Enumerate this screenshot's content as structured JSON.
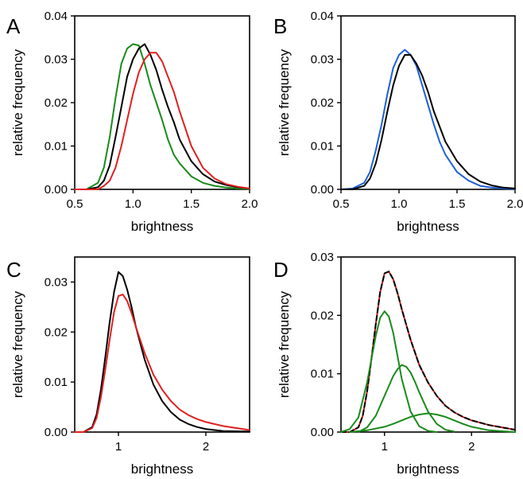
{
  "chart_data": [
    {
      "type": "line",
      "panel": "A",
      "xlabel": "brightness",
      "ylabel": "relative frequency",
      "xlim": [
        0.5,
        2.0
      ],
      "ylim": [
        0,
        0.04
      ],
      "xticks": [
        "0.5",
        "1.0",
        "1.5",
        "2.0"
      ],
      "yticks": [
        "0.00",
        "0.01",
        "0.02",
        "0.03",
        "0.04"
      ],
      "series": [
        {
          "color": "#1a8a1a",
          "x": [
            0.5,
            0.6,
            0.7,
            0.75,
            0.8,
            0.85,
            0.9,
            0.95,
            1.0,
            1.05,
            1.1,
            1.15,
            1.2,
            1.25,
            1.3,
            1.35,
            1.4,
            1.5,
            1.6,
            1.7,
            1.8,
            1.9,
            2.0
          ],
          "y": [
            0,
            0,
            0.0015,
            0.005,
            0.012,
            0.021,
            0.029,
            0.0325,
            0.0335,
            0.0332,
            0.029,
            0.024,
            0.02,
            0.016,
            0.0115,
            0.008,
            0.006,
            0.003,
            0.0015,
            0.0008,
            0.0004,
            0.0002,
            0.0001
          ]
        },
        {
          "color": "#000000",
          "x": [
            0.5,
            0.6,
            0.7,
            0.75,
            0.8,
            0.85,
            0.9,
            0.95,
            1.0,
            1.05,
            1.1,
            1.15,
            1.2,
            1.25,
            1.3,
            1.35,
            1.4,
            1.5,
            1.6,
            1.7,
            1.8,
            1.9,
            2.0
          ],
          "y": [
            0,
            0,
            0.0005,
            0.002,
            0.0055,
            0.012,
            0.019,
            0.026,
            0.03,
            0.0325,
            0.0335,
            0.031,
            0.0275,
            0.023,
            0.019,
            0.0155,
            0.0115,
            0.0065,
            0.0035,
            0.0018,
            0.001,
            0.0005,
            0.0002
          ]
        },
        {
          "color": "#e02020",
          "x": [
            0.5,
            0.6,
            0.7,
            0.75,
            0.8,
            0.85,
            0.9,
            0.95,
            1.0,
            1.05,
            1.1,
            1.15,
            1.2,
            1.25,
            1.3,
            1.35,
            1.4,
            1.5,
            1.6,
            1.7,
            1.8,
            1.9,
            2.0
          ],
          "y": [
            0,
            0,
            0,
            0.0008,
            0.002,
            0.005,
            0.01,
            0.016,
            0.022,
            0.027,
            0.03,
            0.0315,
            0.0315,
            0.0295,
            0.026,
            0.0225,
            0.018,
            0.01,
            0.005,
            0.0025,
            0.0012,
            0.0006,
            0.0002
          ]
        }
      ]
    },
    {
      "type": "line",
      "panel": "B",
      "xlabel": "brightness",
      "ylabel": "relative frequency",
      "xlim": [
        0.5,
        2.0
      ],
      "ylim": [
        0,
        0.04
      ],
      "xticks": [
        "0.5",
        "1.0",
        "1.5",
        "2.0"
      ],
      "yticks": [
        "0.00",
        "0.01",
        "0.02",
        "0.03",
        "0.04"
      ],
      "series": [
        {
          "color": "#1f5fd6",
          "x": [
            0.5,
            0.6,
            0.7,
            0.75,
            0.8,
            0.85,
            0.9,
            0.95,
            1.0,
            1.05,
            1.1,
            1.15,
            1.2,
            1.25,
            1.3,
            1.35,
            1.4,
            1.5,
            1.6,
            1.7,
            1.8,
            1.9,
            2.0
          ],
          "y": [
            0,
            0.0002,
            0.0015,
            0.004,
            0.009,
            0.015,
            0.022,
            0.028,
            0.031,
            0.0322,
            0.031,
            0.0285,
            0.024,
            0.0195,
            0.015,
            0.011,
            0.008,
            0.004,
            0.002,
            0.0008,
            0.0004,
            0.0002,
            0.0001
          ]
        },
        {
          "color": "#000000",
          "x": [
            0.5,
            0.6,
            0.7,
            0.75,
            0.8,
            0.85,
            0.9,
            0.95,
            1.0,
            1.05,
            1.1,
            1.15,
            1.2,
            1.25,
            1.3,
            1.35,
            1.4,
            1.5,
            1.6,
            1.7,
            1.8,
            1.9,
            2.0
          ],
          "y": [
            0,
            0,
            0.0008,
            0.0025,
            0.006,
            0.0115,
            0.018,
            0.024,
            0.0285,
            0.031,
            0.031,
            0.029,
            0.0262,
            0.0225,
            0.018,
            0.0145,
            0.011,
            0.0065,
            0.0035,
            0.0018,
            0.0009,
            0.0004,
            0.0002
          ]
        }
      ]
    },
    {
      "type": "line",
      "panel": "C",
      "xlabel": "brightness",
      "ylabel": "relative frequency",
      "xlim": [
        0.5,
        2.5
      ],
      "ylim": [
        0,
        0.035
      ],
      "xticks": [
        "1",
        "2"
      ],
      "yticks": [
        "0.00",
        "0.01",
        "0.02",
        "0.03"
      ],
      "series": [
        {
          "color": "#000000",
          "x": [
            0.5,
            0.6,
            0.7,
            0.75,
            0.8,
            0.85,
            0.9,
            0.95,
            1.0,
            1.05,
            1.1,
            1.15,
            1.2,
            1.3,
            1.4,
            1.5,
            1.6,
            1.7,
            1.8,
            1.9,
            2.0,
            2.2,
            2.5
          ],
          "y": [
            0,
            0,
            0.001,
            0.0035,
            0.0085,
            0.015,
            0.022,
            0.028,
            0.032,
            0.0312,
            0.0285,
            0.025,
            0.021,
            0.0145,
            0.0095,
            0.0062,
            0.004,
            0.0025,
            0.0016,
            0.001,
            0.0006,
            0.0002,
            0.0001
          ]
        },
        {
          "color": "#e02020",
          "x": [
            0.5,
            0.6,
            0.7,
            0.75,
            0.8,
            0.85,
            0.9,
            0.95,
            1.0,
            1.05,
            1.1,
            1.15,
            1.2,
            1.3,
            1.4,
            1.5,
            1.6,
            1.7,
            1.8,
            1.9,
            2.0,
            2.2,
            2.5
          ],
          "y": [
            0,
            0,
            0.0008,
            0.0028,
            0.007,
            0.0125,
            0.0185,
            0.024,
            0.0272,
            0.0275,
            0.0262,
            0.0238,
            0.021,
            0.0158,
            0.0115,
            0.0085,
            0.0062,
            0.0045,
            0.0034,
            0.0026,
            0.002,
            0.0012,
            0.0004
          ]
        }
      ]
    },
    {
      "type": "line",
      "panel": "D",
      "xlabel": "brightness",
      "ylabel": "relative frequency",
      "xlim": [
        0.5,
        2.5
      ],
      "ylim": [
        0,
        0.03
      ],
      "xticks": [
        "1",
        "2"
      ],
      "yticks": [
        "0.00",
        "0.01",
        "0.02",
        "0.03"
      ],
      "series": [
        {
          "color": "#e02020",
          "x": [
            0.5,
            0.6,
            0.7,
            0.75,
            0.8,
            0.85,
            0.9,
            0.95,
            1.0,
            1.05,
            1.1,
            1.15,
            1.2,
            1.3,
            1.4,
            1.5,
            1.6,
            1.7,
            1.8,
            1.9,
            2.0,
            2.2,
            2.5
          ],
          "y": [
            0,
            0,
            0.0008,
            0.0028,
            0.007,
            0.0125,
            0.0185,
            0.024,
            0.0272,
            0.0275,
            0.0262,
            0.0238,
            0.021,
            0.0158,
            0.0115,
            0.0085,
            0.0062,
            0.0045,
            0.0034,
            0.0026,
            0.002,
            0.0012,
            0.0004
          ]
        },
        {
          "color": "#000000",
          "dash": true,
          "x": [
            0.5,
            0.6,
            0.7,
            0.75,
            0.8,
            0.85,
            0.9,
            0.95,
            1.0,
            1.05,
            1.1,
            1.15,
            1.2,
            1.3,
            1.4,
            1.5,
            1.6,
            1.7,
            1.8,
            1.9,
            2.0,
            2.2,
            2.5
          ],
          "y": [
            0,
            0,
            0.0008,
            0.0028,
            0.007,
            0.0125,
            0.0185,
            0.024,
            0.0272,
            0.0275,
            0.0262,
            0.0238,
            0.021,
            0.0158,
            0.0115,
            0.0085,
            0.0062,
            0.0045,
            0.0034,
            0.0026,
            0.002,
            0.0012,
            0.0004
          ]
        },
        {
          "color": "#1a8a1a",
          "x": [
            0.5,
            0.6,
            0.7,
            0.8,
            0.85,
            0.9,
            0.95,
            1.0,
            1.05,
            1.1,
            1.15,
            1.2,
            1.3,
            1.4,
            1.5,
            1.6
          ],
          "y": [
            0,
            0.0005,
            0.0025,
            0.0085,
            0.0125,
            0.0165,
            0.0196,
            0.0207,
            0.0198,
            0.017,
            0.013,
            0.009,
            0.0035,
            0.001,
            0.0002,
            0
          ]
        },
        {
          "color": "#1a8a1a",
          "x": [
            0.7,
            0.8,
            0.9,
            1.0,
            1.1,
            1.15,
            1.2,
            1.25,
            1.3,
            1.35,
            1.4,
            1.5,
            1.6,
            1.7,
            1.8
          ],
          "y": [
            0,
            0.0008,
            0.0028,
            0.0062,
            0.0096,
            0.0108,
            0.0115,
            0.0112,
            0.0102,
            0.0086,
            0.0068,
            0.0035,
            0.0014,
            0.0004,
            0.0001
          ]
        },
        {
          "color": "#1a8a1a",
          "x": [
            0.6,
            0.8,
            1.0,
            1.1,
            1.2,
            1.3,
            1.4,
            1.5,
            1.6,
            1.7,
            1.8,
            1.9,
            2.0,
            2.2,
            2.4,
            2.5
          ],
          "y": [
            0,
            0.0003,
            0.0009,
            0.0014,
            0.002,
            0.0026,
            0.003,
            0.0032,
            0.003,
            0.0026,
            0.002,
            0.0014,
            0.0009,
            0.0003,
            0.0001,
            0
          ]
        }
      ]
    }
  ]
}
